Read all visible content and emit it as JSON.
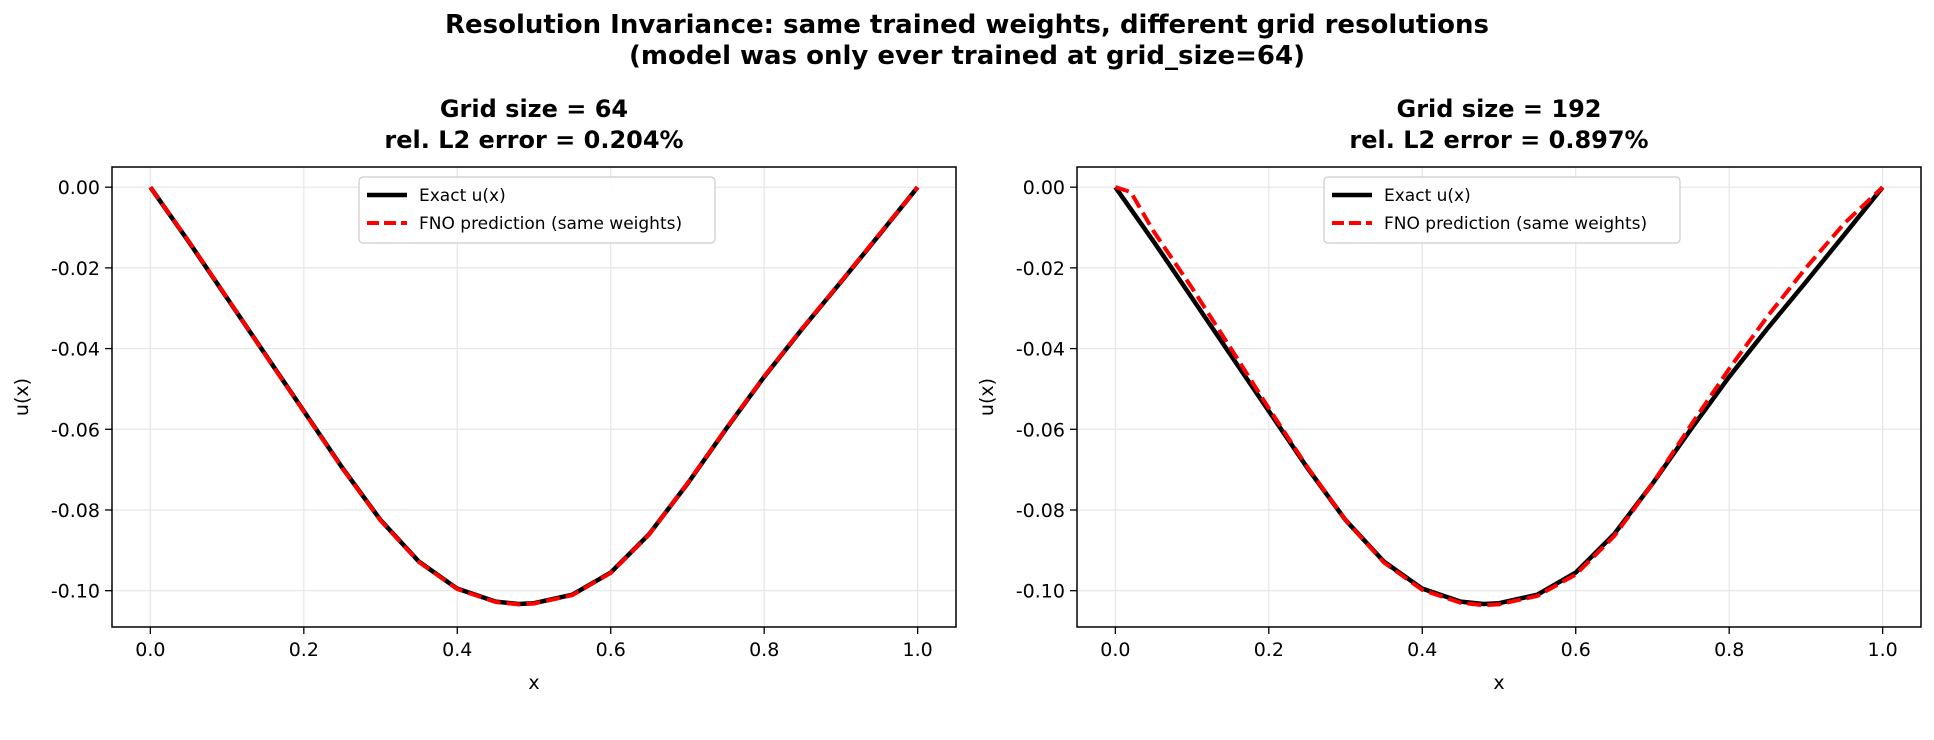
{
  "figure": {
    "title_line1": "Resolution Invariance: same trained weights, different grid resolutions",
    "title_line2": "(model was only ever trained at grid_size=64)"
  },
  "colors": {
    "exact": "#000000",
    "prediction": "#ff0000",
    "grid": "#e6e6e6"
  },
  "chart_data": [
    {
      "type": "line",
      "title_line1": "Grid size = 64",
      "title_line2": "rel. L2 error = 0.204%",
      "xlabel": "x",
      "ylabel": "u(x)",
      "xlim": [
        -0.05,
        1.05
      ],
      "ylim": [
        -0.109,
        0.005
      ],
      "xticks": [
        0.0,
        0.2,
        0.4,
        0.6,
        0.8,
        1.0
      ],
      "xtick_labels": [
        "0.0",
        "0.2",
        "0.4",
        "0.6",
        "0.8",
        "1.0"
      ],
      "yticks": [
        0.0,
        -0.02,
        -0.04,
        -0.06,
        -0.08,
        -0.1
      ],
      "ytick_labels": [
        "0.00",
        "-0.02",
        "-0.04",
        "-0.06",
        "-0.08",
        "-0.10"
      ],
      "grid": true,
      "legend_position": "upper-center",
      "series": [
        {
          "name": "Exact u(x)",
          "style": "solid",
          "x": [
            0.0,
            0.05,
            0.1,
            0.15,
            0.2,
            0.25,
            0.3,
            0.35,
            0.4,
            0.45,
            0.48,
            0.5,
            0.55,
            0.6,
            0.65,
            0.7,
            0.75,
            0.8,
            0.85,
            0.9,
            0.95,
            1.0
          ],
          "y": [
            0.0,
            -0.0135,
            -0.0275,
            -0.0415,
            -0.0555,
            -0.0695,
            -0.0825,
            -0.0928,
            -0.0995,
            -0.1027,
            -0.1033,
            -0.1031,
            -0.101,
            -0.0955,
            -0.086,
            -0.0735,
            -0.06,
            -0.047,
            -0.035,
            -0.0235,
            -0.0118,
            0.0
          ]
        },
        {
          "name": "FNO prediction (same weights)",
          "style": "dashed",
          "x": [
            0.0,
            0.05,
            0.1,
            0.15,
            0.2,
            0.25,
            0.3,
            0.35,
            0.4,
            0.45,
            0.48,
            0.5,
            0.55,
            0.6,
            0.65,
            0.7,
            0.75,
            0.8,
            0.85,
            0.9,
            0.95,
            1.0
          ],
          "y": [
            0.0,
            -0.0134,
            -0.0274,
            -0.0416,
            -0.0556,
            -0.0696,
            -0.0826,
            -0.0929,
            -0.0996,
            -0.1028,
            -0.1034,
            -0.1032,
            -0.1011,
            -0.0956,
            -0.0861,
            -0.0734,
            -0.0599,
            -0.0469,
            -0.0349,
            -0.0234,
            -0.0117,
            0.0
          ]
        }
      ]
    },
    {
      "type": "line",
      "title_line1": "Grid size = 192",
      "title_line2": "rel. L2 error = 0.897%",
      "xlabel": "x",
      "ylabel": "u(x)",
      "xlim": [
        -0.05,
        1.05
      ],
      "ylim": [
        -0.109,
        0.005
      ],
      "xticks": [
        0.0,
        0.2,
        0.4,
        0.6,
        0.8,
        1.0
      ],
      "xtick_labels": [
        "0.0",
        "0.2",
        "0.4",
        "0.6",
        "0.8",
        "1.0"
      ],
      "yticks": [
        0.0,
        -0.02,
        -0.04,
        -0.06,
        -0.08,
        -0.1
      ],
      "ytick_labels": [
        "0.00",
        "-0.02",
        "-0.04",
        "-0.06",
        "-0.08",
        "-0.10"
      ],
      "grid": true,
      "legend_position": "upper-center",
      "series": [
        {
          "name": "Exact u(x)",
          "style": "solid",
          "x": [
            0.0,
            0.05,
            0.1,
            0.15,
            0.2,
            0.25,
            0.3,
            0.35,
            0.4,
            0.45,
            0.48,
            0.5,
            0.55,
            0.6,
            0.65,
            0.7,
            0.75,
            0.8,
            0.85,
            0.9,
            0.95,
            1.0
          ],
          "y": [
            0.0,
            -0.0135,
            -0.0275,
            -0.0415,
            -0.0555,
            -0.0695,
            -0.0825,
            -0.0928,
            -0.0995,
            -0.1027,
            -0.1033,
            -0.1031,
            -0.101,
            -0.0955,
            -0.086,
            -0.0735,
            -0.06,
            -0.047,
            -0.035,
            -0.0235,
            -0.0118,
            0.0
          ]
        },
        {
          "name": "FNO prediction (same weights)",
          "style": "dashed",
          "x": [
            0.0,
            0.02,
            0.05,
            0.1,
            0.15,
            0.2,
            0.25,
            0.3,
            0.35,
            0.4,
            0.45,
            0.48,
            0.5,
            0.55,
            0.6,
            0.65,
            0.7,
            0.75,
            0.8,
            0.85,
            0.9,
            0.95,
            1.0
          ],
          "y": [
            0.0,
            -0.0012,
            -0.011,
            -0.025,
            -0.0398,
            -0.0548,
            -0.0693,
            -0.0825,
            -0.093,
            -0.0998,
            -0.103,
            -0.1036,
            -0.1034,
            -0.1013,
            -0.096,
            -0.0865,
            -0.0735,
            -0.059,
            -0.045,
            -0.032,
            -0.02,
            -0.009,
            0.0
          ]
        }
      ]
    }
  ]
}
